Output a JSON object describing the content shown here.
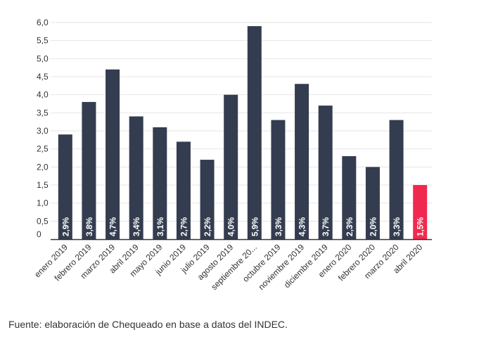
{
  "chart_data": {
    "type": "bar",
    "title": "",
    "xlabel": "",
    "ylabel": "",
    "ylim": [
      0,
      6.0
    ],
    "y_ticks": [
      "0",
      "0,5",
      "1,0",
      "1,5",
      "2,0",
      "2,5",
      "3,0",
      "3,5",
      "4,0",
      "4,5",
      "5,0",
      "5,5",
      "6,0"
    ],
    "grid": true,
    "categories": [
      "enero 2019",
      "febrero 2019",
      "marzo 2019",
      "abril 2019",
      "mayo 2019",
      "junio 2019",
      "julio 2019",
      "agosto 2019",
      "septiembre 20...",
      "octubre 2019",
      "noviembre 2019",
      "diciembre 2019",
      "enero 2020",
      "febrero 2020",
      "marzo 2020",
      "abril 2020"
    ],
    "values": [
      2.9,
      3.8,
      4.7,
      3.4,
      3.1,
      2.7,
      2.2,
      4.0,
      5.9,
      3.3,
      4.3,
      3.7,
      2.3,
      2.0,
      3.3,
      1.5
    ],
    "data_labels": [
      "2,9%",
      "3,8%",
      "4,7%",
      "3,4%",
      "3,1%",
      "2,7%",
      "2,2%",
      "4,0%",
      "5,9%",
      "3,3%",
      "4,3%",
      "3,7%",
      "2,3%",
      "2,0%",
      "3,3%",
      "1,5%"
    ],
    "colors": {
      "default": "#343d4f",
      "highlight": "#f2294e",
      "grid": "#e6e6e6",
      "axis": "#333333",
      "label": "#ffffff"
    },
    "highlight_index": 15
  },
  "source_text": "Fuente: elaboración de Chequeado en base a datos del INDEC."
}
